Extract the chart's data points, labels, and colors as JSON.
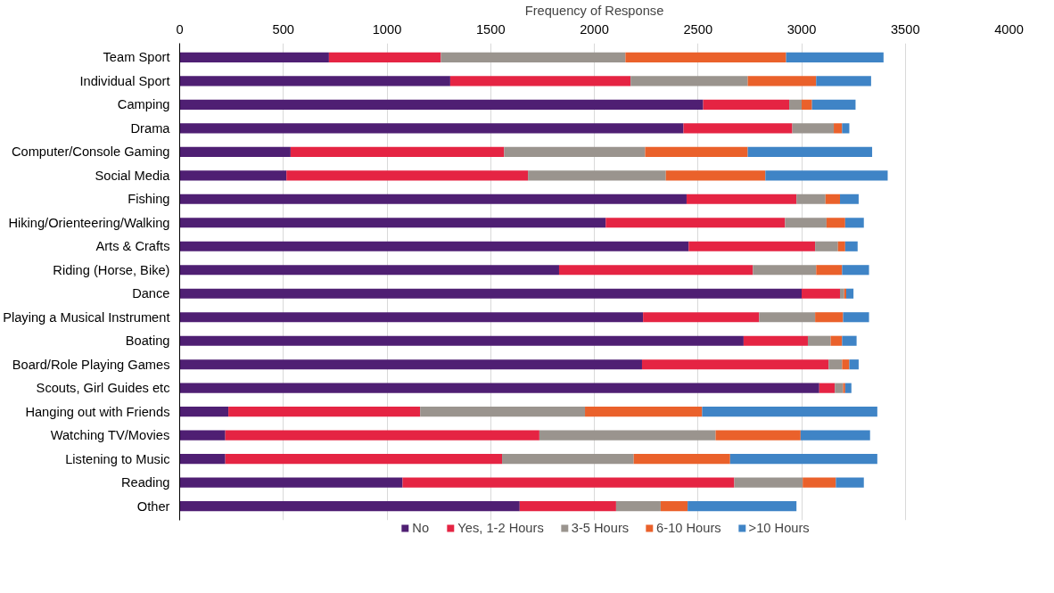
{
  "chart_data": {
    "type": "bar",
    "orientation": "horizontal",
    "stacked": true,
    "xlabel": "Frequency of Response",
    "categories": [
      "Team Sport",
      "Individual Sport",
      "Camping",
      "Drama",
      "Computer/Console Gaming",
      "Social Media",
      "Fishing",
      "Hiking/Orienteering/Walking",
      "Arts & Crafts",
      "Riding (Horse, Bike)",
      "Dance",
      "Playing a Musical Instrument",
      "Boating",
      "Board/Role Playing Games",
      "Scouts, Girl Guides etc",
      "Hanging out with Friends",
      "Watching TV/Movies",
      "Listening to Music",
      "Reading",
      "Other"
    ],
    "series": [
      {
        "name": "No",
        "color": "#4f1f73",
        "values": [
          720,
          1305,
          2525,
          2430,
          535,
          515,
          2445,
          2055,
          2455,
          1830,
          3000,
          2235,
          2720,
          2230,
          3085,
          235,
          220,
          220,
          1075,
          1640
        ]
      },
      {
        "name": "Yes, 1-2 Hours",
        "color": "#e52443",
        "values": [
          540,
          870,
          415,
          525,
          1030,
          1165,
          530,
          865,
          610,
          935,
          185,
          560,
          310,
          900,
          75,
          925,
          1515,
          1335,
          1600,
          465
        ]
      },
      {
        "name": "3-5 Hours",
        "color": "#9a948e",
        "values": [
          890,
          565,
          60,
          200,
          680,
          665,
          140,
          200,
          110,
          305,
          20,
          270,
          110,
          65,
          40,
          795,
          850,
          635,
          330,
          215
        ]
      },
      {
        "name": "6-10 Hours",
        "color": "#ea612b",
        "values": [
          775,
          330,
          50,
          40,
          495,
          480,
          70,
          90,
          35,
          125,
          10,
          135,
          55,
          35,
          10,
          565,
          410,
          465,
          160,
          130
        ]
      },
      {
        "name": ">10 Hours",
        "color": "#3f84c6",
        "values": [
          470,
          265,
          210,
          35,
          600,
          590,
          90,
          90,
          60,
          130,
          35,
          125,
          70,
          45,
          30,
          845,
          335,
          710,
          135,
          525
        ]
      }
    ],
    "xlim": [
      0,
      4000
    ],
    "xticks": [
      0,
      500,
      1000,
      1500,
      2000,
      2500,
      3000,
      3500,
      4000
    ],
    "grid": "x",
    "legend": "bottom"
  }
}
